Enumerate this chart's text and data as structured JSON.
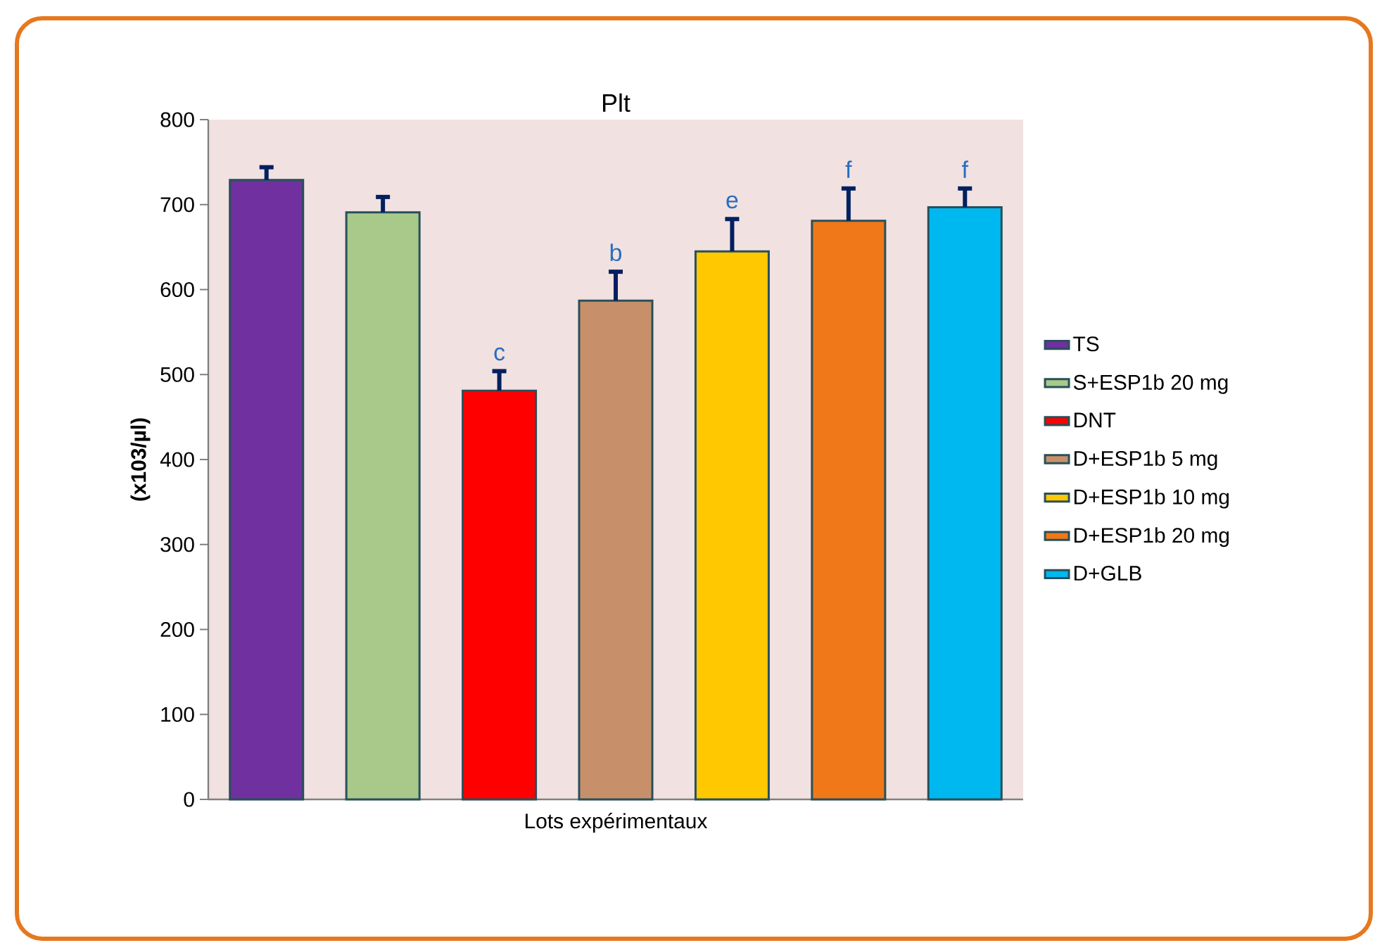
{
  "chart_data": {
    "type": "bar",
    "title": "Plt",
    "xlabel": "Lots expérimentaux",
    "ylabel": "(x103/µl)",
    "categories": [
      null,
      null,
      null,
      null,
      null,
      null,
      null
    ],
    "series": [
      {
        "name": "TS",
        "color": "#7030a0",
        "values": [
          729,
          null,
          null,
          null,
          null,
          null,
          null
        ],
        "errors": [
          15,
          null,
          null,
          null,
          null,
          null,
          null
        ]
      },
      {
        "name": "S+ESP1b 20 mg",
        "color": "#a9c98a",
        "values": [
          null,
          691,
          null,
          null,
          null,
          null,
          null
        ],
        "errors": [
          null,
          18,
          null,
          null,
          null,
          null,
          null
        ]
      },
      {
        "name": "DNT",
        "color": "#ff0000",
        "values": [
          null,
          null,
          481,
          null,
          null,
          null,
          null
        ],
        "errors": [
          null,
          null,
          23,
          null,
          null,
          null,
          null
        ]
      },
      {
        "name": "D+ESP1b   5 mg",
        "color": "#c8906a",
        "values": [
          null,
          null,
          null,
          587,
          null,
          null,
          null
        ],
        "errors": [
          null,
          null,
          null,
          34,
          null,
          null,
          null
        ]
      },
      {
        "name": "D+ESP1b 10 mg",
        "color": "#ffc800",
        "values": [
          null,
          null,
          null,
          null,
          645,
          null,
          null
        ],
        "errors": [
          null,
          null,
          null,
          null,
          38,
          null,
          null
        ]
      },
      {
        "name": "D+ESP1b 20 mg",
        "color": "#f07818",
        "values": [
          null,
          null,
          null,
          null,
          null,
          681,
          null
        ],
        "errors": [
          null,
          null,
          null,
          null,
          null,
          38,
          null
        ]
      },
      {
        "name": "D+GLB",
        "color": "#00b8f0",
        "values": [
          null,
          null,
          null,
          null,
          null,
          null,
          697
        ],
        "errors": [
          null,
          null,
          null,
          null,
          null,
          null,
          22
        ]
      }
    ],
    "ylim": [
      0,
      800
    ],
    "yticks": [
      0,
      100,
      200,
      300,
      400,
      500,
      600,
      700,
      800
    ],
    "tick_labels": "y",
    "legend": "right",
    "annotations": [
      "c",
      "b",
      "e",
      "f",
      "f"
    ]
  }
}
